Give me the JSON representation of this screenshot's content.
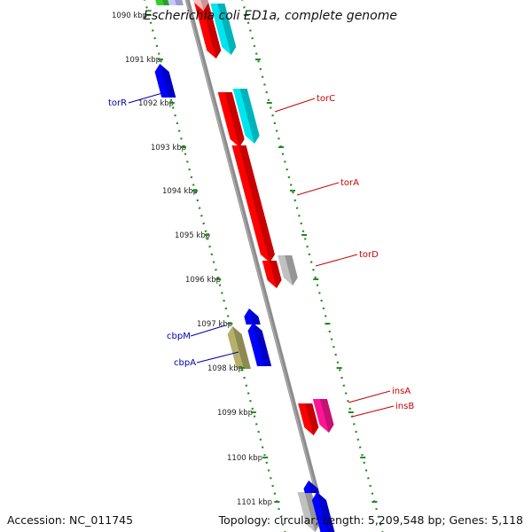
{
  "title": "Escherichia coli ED1a, complete genome",
  "accession": "Accession: NC_011745",
  "summary": "Topology: circular; Length: 5,209,548 bp; Genes: 5,118",
  "colors": {
    "backbone": "#8c8c8c",
    "tick_dots": "#228b22",
    "forward_label": "#cc0000",
    "reverse_label": "#0000aa",
    "red": "#ff0000",
    "cyan": "#00e5ee",
    "blue": "#0000ff",
    "gray": "#c0c0c0",
    "olive": "#b5b06a",
    "pink": "#ff1493",
    "green": "#33cc33",
    "lavender": "#c8c8ff",
    "pink_light": "#ffc0c0"
  },
  "ticks": [
    "1090 kbp",
    "1091 kbp",
    "1092 kbp",
    "1093 kbp",
    "1094 kbp",
    "1095 kbp",
    "1096 kbp",
    "1097 kbp",
    "1098 kbp",
    "1099 kbp",
    "1100 kbp",
    "1101 kbp"
  ],
  "genes": [
    {
      "name": "",
      "strand": "reverse",
      "color": "green"
    },
    {
      "name": "",
      "strand": "reverse",
      "color": "lavender"
    },
    {
      "name": "",
      "strand": "forward",
      "color": "red"
    },
    {
      "name": "",
      "strand": "forward",
      "color": "pink_light"
    },
    {
      "name": "",
      "strand": "forward",
      "color": "cyan"
    },
    {
      "name": "torR",
      "strand": "reverse",
      "color": "blue"
    },
    {
      "name": "torC",
      "strand": "forward",
      "color": "red"
    },
    {
      "name": "",
      "strand": "forward",
      "color": "cyan"
    },
    {
      "name": "torA",
      "strand": "forward",
      "color": "red"
    },
    {
      "name": "torD",
      "strand": "forward",
      "color": "red"
    },
    {
      "name": "",
      "strand": "forward",
      "color": "gray"
    },
    {
      "name": "",
      "strand": "reverse",
      "color": "blue"
    },
    {
      "name": "cbpM",
      "strand": "reverse",
      "color": "blue"
    },
    {
      "name": "cbpA",
      "strand": "reverse",
      "color": "olive"
    },
    {
      "name": "insA",
      "strand": "forward",
      "color": "red"
    },
    {
      "name": "insB",
      "strand": "forward",
      "color": "pink"
    },
    {
      "name": "",
      "strand": "forward",
      "color": "gray"
    },
    {
      "name": "",
      "strand": "reverse",
      "color": "blue"
    },
    {
      "name": "",
      "strand": "reverse",
      "color": "blue"
    }
  ]
}
